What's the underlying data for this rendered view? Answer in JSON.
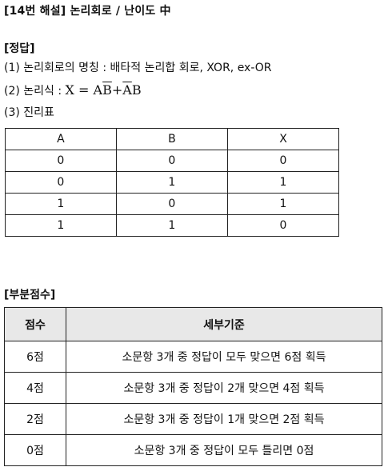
{
  "title": "[14번 해설] 논리회로 / 난이도 中",
  "answer_heading": "[정답]",
  "item1": "(1) 논리회로의 명칭 : 배타적 논리합 회로, XOR, ex-OR",
  "item2": {
    "prefix": "(2) 논리식 : ",
    "x": "X",
    "eq": " = ",
    "a1": "A",
    "b1bar": "B",
    "plus": "+",
    "a2bar": "A",
    "b2": "B"
  },
  "item3": "(3) 진리표",
  "truth_table": {
    "headers": [
      "A",
      "B",
      "X"
    ],
    "rows": [
      [
        "0",
        "0",
        "0"
      ],
      [
        "0",
        "1",
        "1"
      ],
      [
        "1",
        "0",
        "1"
      ],
      [
        "1",
        "1",
        "0"
      ]
    ]
  },
  "score_heading": "[부분점수]",
  "score_table": {
    "headers": [
      "점수",
      "세부기준"
    ],
    "rows": [
      [
        "6점",
        "소문항 3개 중 정답이 모두 맞으면 6점 획득"
      ],
      [
        "4점",
        "소문항 3개 중 정답이 2개 맞으면 4점 획득"
      ],
      [
        "2점",
        "소문항 3개 중 정답이 1개 맞으면 2점 획득"
      ],
      [
        "0점",
        "소문항 3개 중 정답이 모두 틀리면 0점"
      ]
    ]
  }
}
